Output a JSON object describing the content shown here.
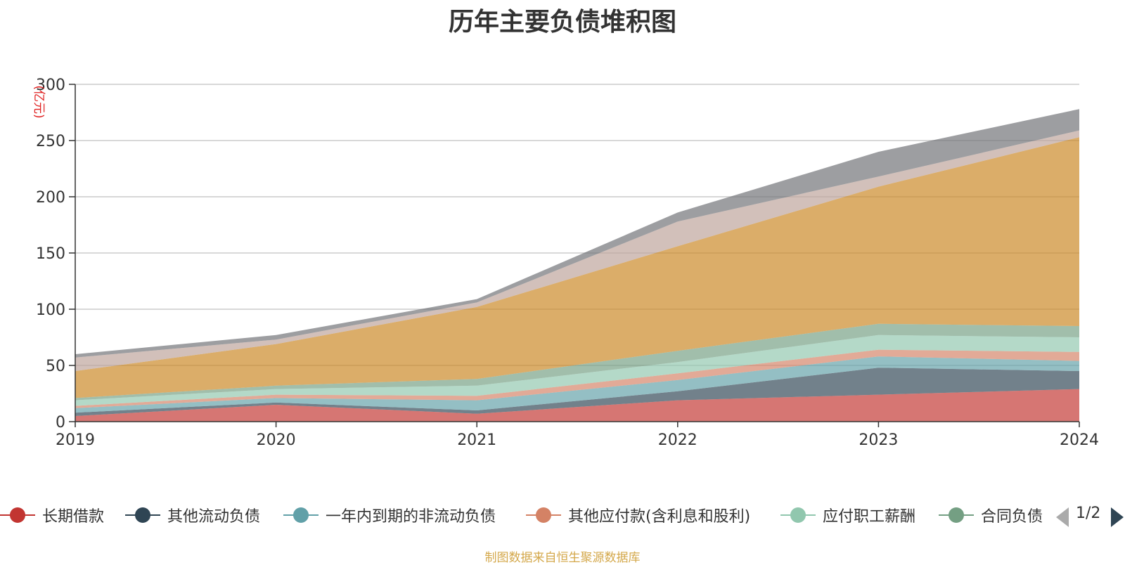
{
  "title": "历年主要负债堆积图",
  "source": "制图数据来自恒生聚源数据库",
  "pager": {
    "text": "1/2"
  },
  "chart_data": {
    "type": "area",
    "stacked": true,
    "title": "历年主要负债堆积图",
    "ylabel": "(亿元)",
    "ylim": [
      0,
      300
    ],
    "yticks": [
      0,
      50,
      100,
      150,
      200,
      250,
      300
    ],
    "categories": [
      "2019",
      "2020",
      "2021",
      "2022",
      "2023",
      "2024"
    ],
    "grid": true,
    "legend_position": "bottom",
    "series": [
      {
        "name": "长期借款",
        "color": "#c23531",
        "values": [
          5,
          15,
          7,
          19,
          24,
          29
        ]
      },
      {
        "name": "其他流动负债",
        "color": "#2f4554",
        "values": [
          3,
          2,
          3,
          8,
          24,
          16
        ]
      },
      {
        "name": "一年内到期的非流动负债",
        "color": "#61a0a8",
        "values": [
          4,
          4,
          9,
          10,
          10,
          9
        ]
      },
      {
        "name": "其他应付款(含利息和股利)",
        "color": "#d48265",
        "values": [
          2,
          3,
          4,
          6,
          6,
          8
        ]
      },
      {
        "name": "应付职工薪酬",
        "color": "#91c7ae",
        "values": [
          5,
          5,
          9,
          10,
          13,
          13
        ]
      },
      {
        "name": "合同负债",
        "color": "#749f83",
        "values": [
          2,
          3,
          6,
          10,
          10,
          10
        ]
      },
      {
        "name": "",
        "color": "#ca8622",
        "values": [
          24,
          37,
          64,
          93,
          122,
          168
        ]
      },
      {
        "name": "",
        "color": "#bda29a",
        "values": [
          12,
          4,
          4,
          22,
          9,
          6
        ]
      },
      {
        "name": "",
        "color": "#6e7074",
        "values": [
          3,
          4,
          3,
          8,
          22,
          19
        ]
      }
    ],
    "legend": [
      {
        "label": "长期借款",
        "color": "#c23531"
      },
      {
        "label": "其他流动负债",
        "color": "#2f4554"
      },
      {
        "label": "一年内到期的非流动负债",
        "color": "#61a0a8"
      },
      {
        "label": "其他应付款(含利息和股利)",
        "color": "#d48265"
      },
      {
        "label": "应付职工薪酬",
        "color": "#91c7ae"
      },
      {
        "label": "合同负债",
        "color": "#749f83"
      }
    ]
  }
}
